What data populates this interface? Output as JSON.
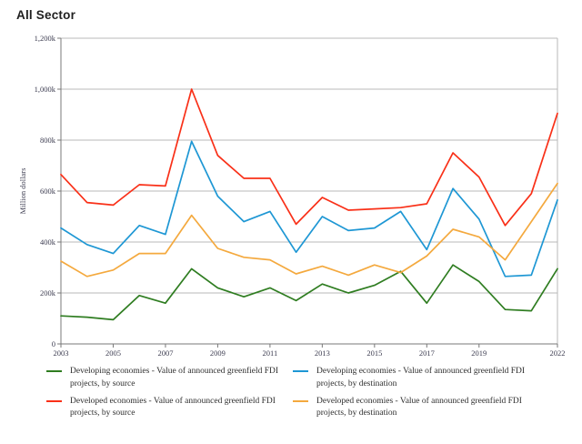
{
  "title": "All Sector",
  "chart_data": {
    "type": "line",
    "title": "All Sector",
    "ylabel": "Million dollars",
    "xlabel": "",
    "grid": "horizontal",
    "legend_position": "bottom",
    "ylim": [
      0,
      1200
    ],
    "y_unit_suffix": "k",
    "y_ticks": [
      0,
      200,
      400,
      600,
      800,
      1000,
      1200
    ],
    "y_tick_labels": [
      "0",
      "200k",
      "400k",
      "600k",
      "800k",
      "1,000k",
      "1,200k"
    ],
    "x": [
      2003,
      2004,
      2005,
      2006,
      2007,
      2008,
      2009,
      2010,
      2011,
      2012,
      2013,
      2014,
      2015,
      2016,
      2017,
      2018,
      2019,
      2020,
      2021,
      2022
    ],
    "x_ticks": [
      2003,
      2005,
      2007,
      2009,
      2011,
      2013,
      2015,
      2017,
      2019,
      2022
    ],
    "x_tick_labels": [
      "2003",
      "2005",
      "2007",
      "2009",
      "2011",
      "2013",
      "2015",
      "2017",
      "2019",
      "2022"
    ],
    "series": [
      {
        "name": "Developing economies - Value of announced greenfield FDI projects, by source",
        "color": "#2f7d21",
        "values": [
          110,
          105,
          95,
          190,
          160,
          295,
          220,
          185,
          220,
          170,
          235,
          200,
          230,
          285,
          160,
          310,
          245,
          135,
          130,
          295
        ]
      },
      {
        "name": "Developing economies - Value of announced greenfield FDI projects, by destination",
        "color": "#1e97d4",
        "values": [
          455,
          390,
          355,
          465,
          430,
          795,
          580,
          480,
          520,
          360,
          500,
          445,
          455,
          520,
          370,
          610,
          490,
          265,
          270,
          565
        ]
      },
      {
        "name": "Developed economies - Value of announced greenfield FDI projects, by source",
        "color": "#f93018",
        "values": [
          665,
          555,
          545,
          625,
          620,
          1000,
          740,
          650,
          650,
          470,
          575,
          525,
          530,
          535,
          550,
          750,
          655,
          465,
          590,
          905
        ]
      },
      {
        "name": "Developed economies - Value of announced greenfield FDI projects, by destination",
        "color": "#f4a93e",
        "values": [
          325,
          265,
          290,
          355,
          355,
          505,
          375,
          340,
          330,
          275,
          305,
          270,
          310,
          280,
          345,
          450,
          420,
          330,
          480,
          630
        ]
      }
    ]
  },
  "colors": {
    "grid_line": "#b9b9b9",
    "axis_line": "#787878",
    "tick_text": "#3c3c50",
    "title_text": "#1f1f1f"
  }
}
